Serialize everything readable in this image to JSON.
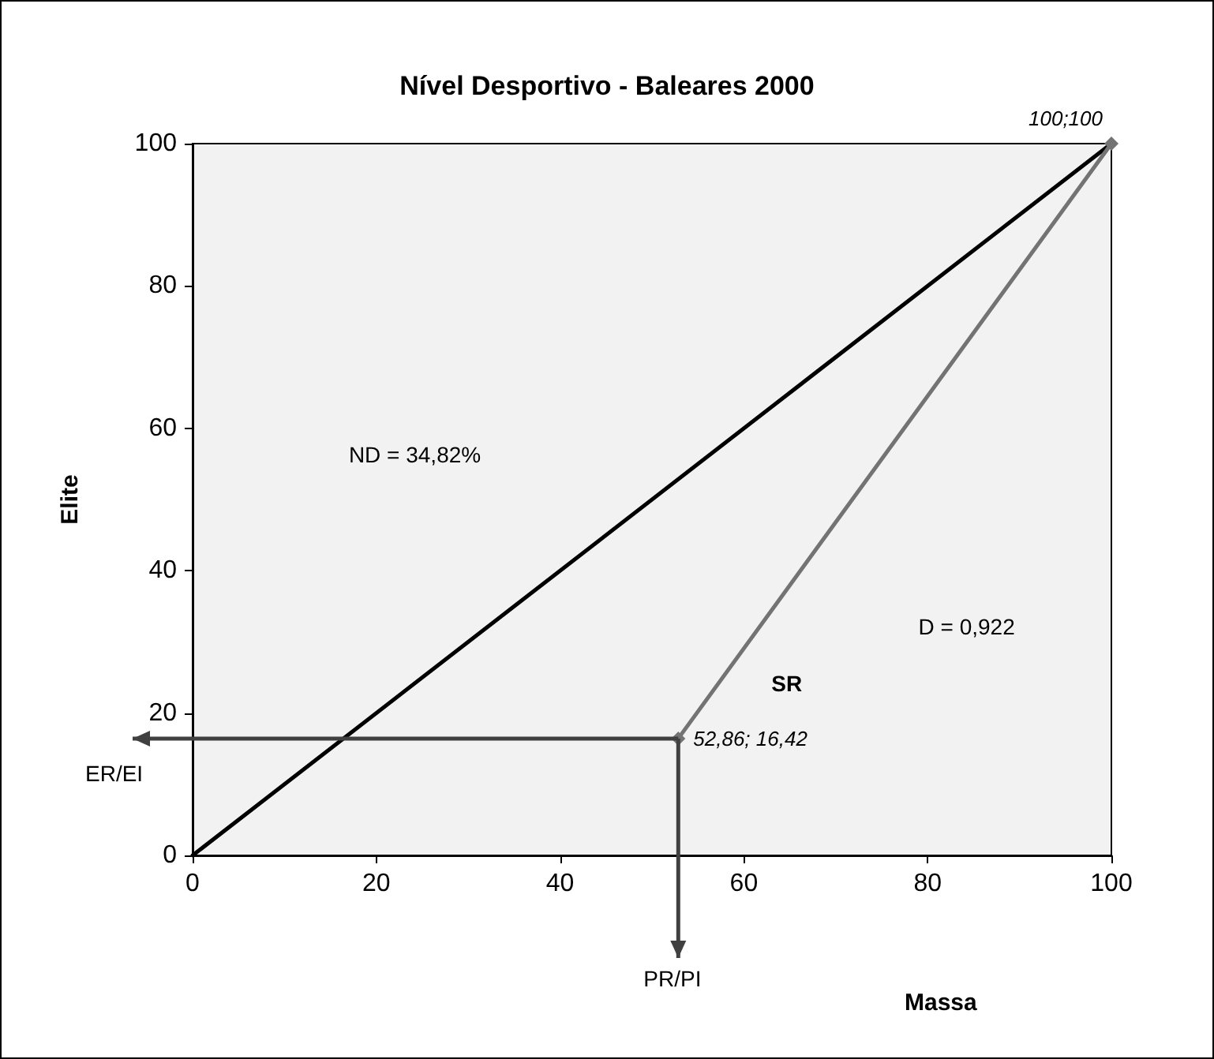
{
  "chart_data": {
    "type": "line",
    "title": "Nível Desportivo - Baleares 2000",
    "xlabel": "Massa",
    "ylabel": "Elite",
    "xlim": [
      0,
      100
    ],
    "xticks": [
      0,
      20,
      40,
      60,
      80,
      100
    ],
    "ylim": [
      0,
      100
    ],
    "yticks": [
      0,
      20,
      40,
      60,
      80,
      100
    ],
    "grid": false,
    "series": [
      {
        "color": "#000000",
        "x": [
          0,
          100
        ],
        "values": [
          0,
          100
        ],
        "marker": "none"
      },
      {
        "color": "#737373",
        "x": [
          52.86,
          100
        ],
        "values": [
          16.42,
          100
        ],
        "marker": "diamond",
        "value_labels": [
          "52,86; 16,42",
          "100;100"
        ]
      }
    ],
    "annotations": [
      "ND = 34,82%",
      "D = 0,922",
      "SR",
      "ER/EI",
      "PR/PI"
    ]
  }
}
